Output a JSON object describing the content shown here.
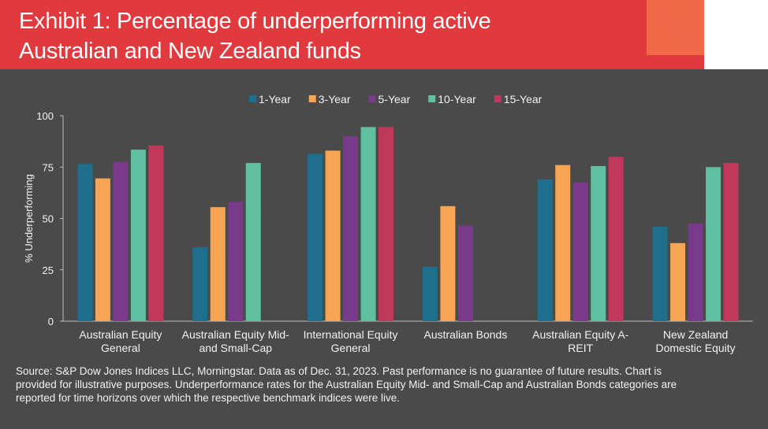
{
  "header": {
    "title_line1": "Exhibit 1: Percentage of underperforming active",
    "title_line2": "Australian and New Zealand funds"
  },
  "colors": {
    "header": "#e0393e",
    "background": "#4a4a4a"
  },
  "chart_data": {
    "type": "bar",
    "title": "",
    "ylabel": "% Underperforming",
    "xlabel": "",
    "ylim": [
      0,
      100
    ],
    "yticks": [
      0,
      25,
      50,
      75,
      100
    ],
    "legend_position": "top-center",
    "grid": false,
    "categories": [
      [
        "Australian Equity",
        "General"
      ],
      [
        "Australian Equity Mid-",
        "and Small-Cap"
      ],
      [
        "International Equity",
        "General"
      ],
      [
        "Australian Bonds"
      ],
      [
        "Australian Equity A-",
        "REIT"
      ],
      [
        "New Zealand",
        "Domestic Equity"
      ]
    ],
    "series": [
      {
        "name": "1-Year",
        "color": "#1f6e8c",
        "values": [
          76.5,
          36,
          81.5,
          26.5,
          69,
          46
        ]
      },
      {
        "name": "3-Year",
        "color": "#f5a553",
        "values": [
          69.5,
          55.5,
          83,
          56,
          76,
          38
        ]
      },
      {
        "name": "5-Year",
        "color": "#7a3a8c",
        "values": [
          77.5,
          58,
          90,
          46.5,
          67.5,
          47.5
        ]
      },
      {
        "name": "10-Year",
        "color": "#5fbfa0",
        "values": [
          83.5,
          77,
          94.5,
          null,
          75.5,
          75
        ]
      },
      {
        "name": "15-Year",
        "color": "#c0385a",
        "values": [
          85.5,
          null,
          94.5,
          null,
          80,
          77
        ]
      }
    ]
  },
  "source": {
    "line1": "Source: S&P Dow Jones Indices LLC, Morningstar.  Data as of Dec. 31, 2023.  Past performance is no guarantee of future results.  Chart is",
    "line2": "provided for illustrative purposes.  Underperformance rates for the Australian Equity Mid- and Small-Cap and Australian Bonds categories are",
    "line3": "reported for time horizons over which the respective benchmark indices were live."
  }
}
